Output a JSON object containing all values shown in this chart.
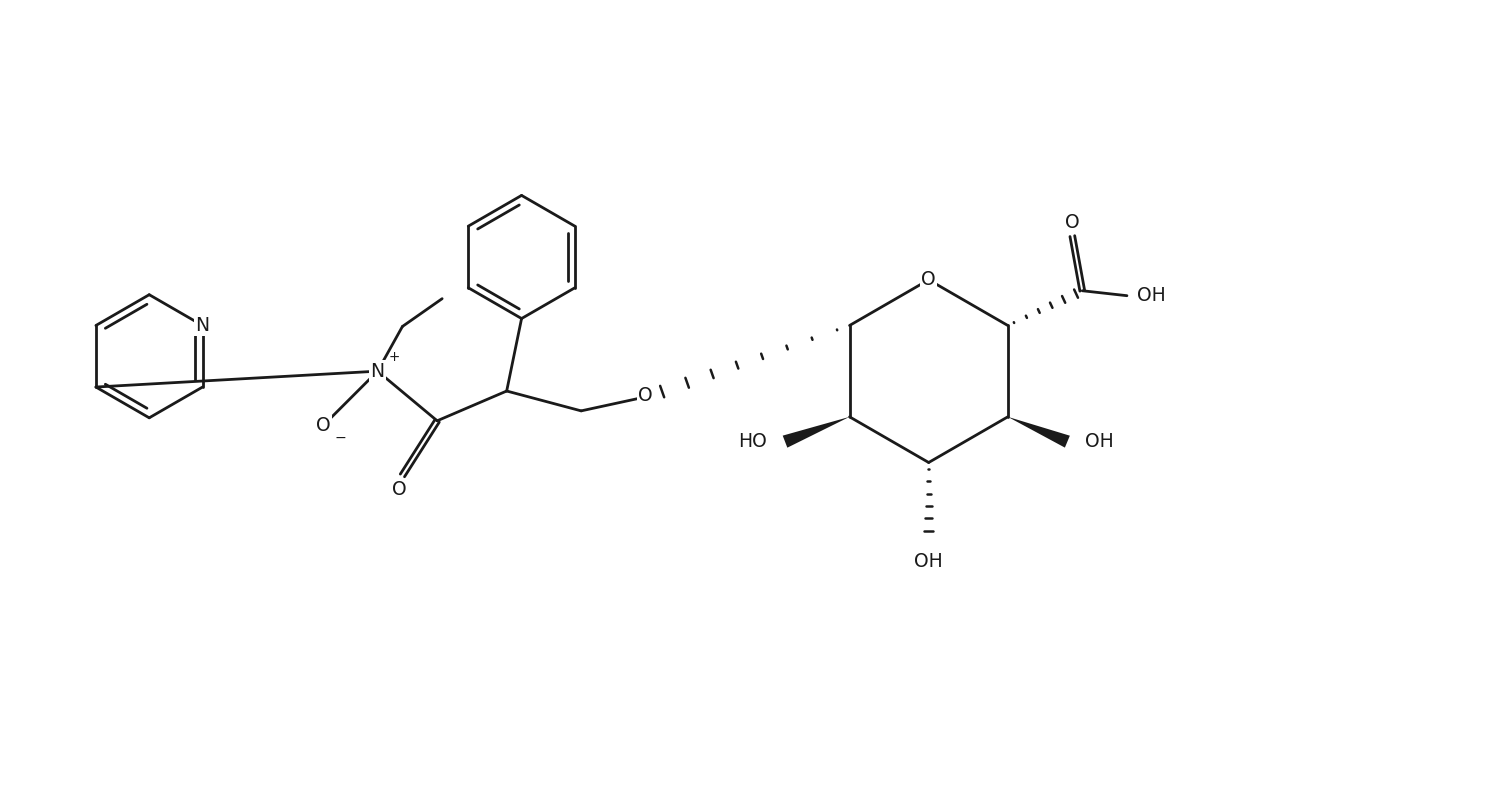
{
  "bg_color": "#ffffff",
  "line_color": "#1a1a1a",
  "lw": 2.0,
  "fs": 13.5,
  "fig_w": 14.86,
  "fig_h": 7.86,
  "dpi": 100,
  "xlim": [
    0,
    148.6
  ],
  "ylim": [
    0,
    78.6
  ]
}
